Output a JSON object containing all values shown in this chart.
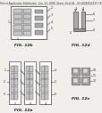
{
  "background_color": "#f0efeb",
  "header_text": "Patent Application Publication   Jun. 12, 2008  Sheet 13 of 44   US 2008/0143317 A1",
  "header_fontsize": 2.0,
  "fig_labels": [
    "FIG. 12b",
    "FIG. 12d",
    "FIG. 12a",
    "FIG. 12e"
  ],
  "fig_label_fontsize": 3.2,
  "line_color": "#444444",
  "fill_dark": "#aaaaaa",
  "fill_light": "#dddddd",
  "fill_white": "#ffffff"
}
